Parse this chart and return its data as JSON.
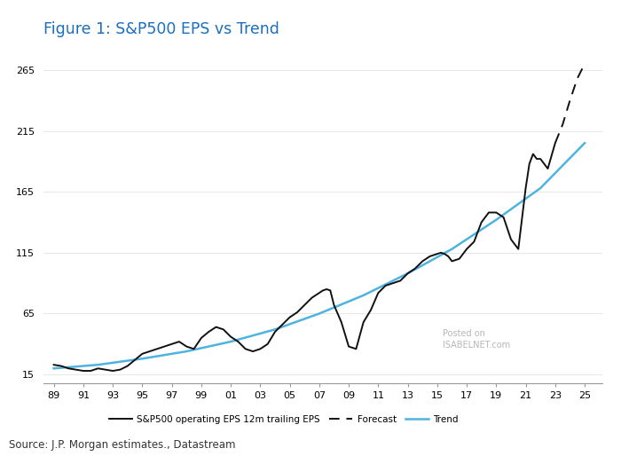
{
  "title": "Figure 1: S&P500 EPS vs Trend",
  "source_text": "Source: J.P. Morgan estimates., Datastream",
  "title_color": "#1a6ebd",
  "title_fontsize": 12.5,
  "background_color": "#ffffff",
  "plot_bg_color": "#ffffff",
  "yticks": [
    15,
    65,
    115,
    165,
    215,
    265
  ],
  "xtick_labels": [
    "89",
    "91",
    "93",
    "95",
    "97",
    "99",
    "01",
    "03",
    "05",
    "07",
    "09",
    "11",
    "13",
    "15",
    "17",
    "19",
    "21",
    "23",
    "25"
  ],
  "ylim": [
    8,
    285
  ],
  "xlim_left": 1988.3,
  "xlim_right": 2026.2,
  "eps_color": "#111111",
  "forecast_color": "#111111",
  "trend_color": "#4fb3e0",
  "eps_linewidth": 1.4,
  "forecast_linewidth": 1.4,
  "trend_linewidth": 1.8,
  "eps_x": [
    1989,
    1989.5,
    1990,
    1990.5,
    1991,
    1991.5,
    1992,
    1992.5,
    1993,
    1993.5,
    1994,
    1994.5,
    1995,
    1995.5,
    1996,
    1996.5,
    1997,
    1997.5,
    1998,
    1998.5,
    1999,
    1999.5,
    2000,
    2000.5,
    2001,
    2001.5,
    2002,
    2002.5,
    2003,
    2003.5,
    2004,
    2004.5,
    2005,
    2005.5,
    2006,
    2006.5,
    2007,
    2007.25,
    2007.5,
    2007.75,
    2008,
    2008.5,
    2009,
    2009.5,
    2010,
    2010.5,
    2011,
    2011.5,
    2012,
    2012.5,
    2013,
    2013.5,
    2014,
    2014.5,
    2015,
    2015.25,
    2015.5,
    2015.75,
    2016,
    2016.5,
    2017,
    2017.5,
    2018,
    2018.5,
    2019,
    2019.5,
    2020,
    2020.5,
    2021,
    2021.25,
    2021.5,
    2021.75,
    2022,
    2022.5,
    2023
  ],
  "eps_y": [
    23,
    22,
    20,
    19,
    18,
    18,
    20,
    19,
    18,
    19,
    22,
    27,
    32,
    34,
    36,
    38,
    40,
    42,
    38,
    36,
    45,
    50,
    54,
    52,
    46,
    42,
    36,
    34,
    36,
    40,
    50,
    56,
    62,
    66,
    72,
    78,
    82,
    84,
    85,
    84,
    72,
    58,
    38,
    36,
    58,
    68,
    82,
    88,
    90,
    92,
    98,
    102,
    108,
    112,
    114,
    115,
    114,
    112,
    108,
    110,
    118,
    124,
    140,
    148,
    148,
    144,
    126,
    118,
    168,
    188,
    196,
    192,
    192,
    184,
    205
  ],
  "forecast_x": [
    2023,
    2023.5,
    2024,
    2024.5,
    2025
  ],
  "forecast_y": [
    205,
    220,
    240,
    258,
    270
  ],
  "trend_x": [
    1989,
    1992,
    1995,
    1998,
    2001,
    2004,
    2007,
    2010,
    2013,
    2016,
    2019,
    2022,
    2025
  ],
  "trend_y": [
    20,
    23,
    28,
    34,
    42,
    52,
    65,
    80,
    98,
    118,
    142,
    168,
    205
  ]
}
